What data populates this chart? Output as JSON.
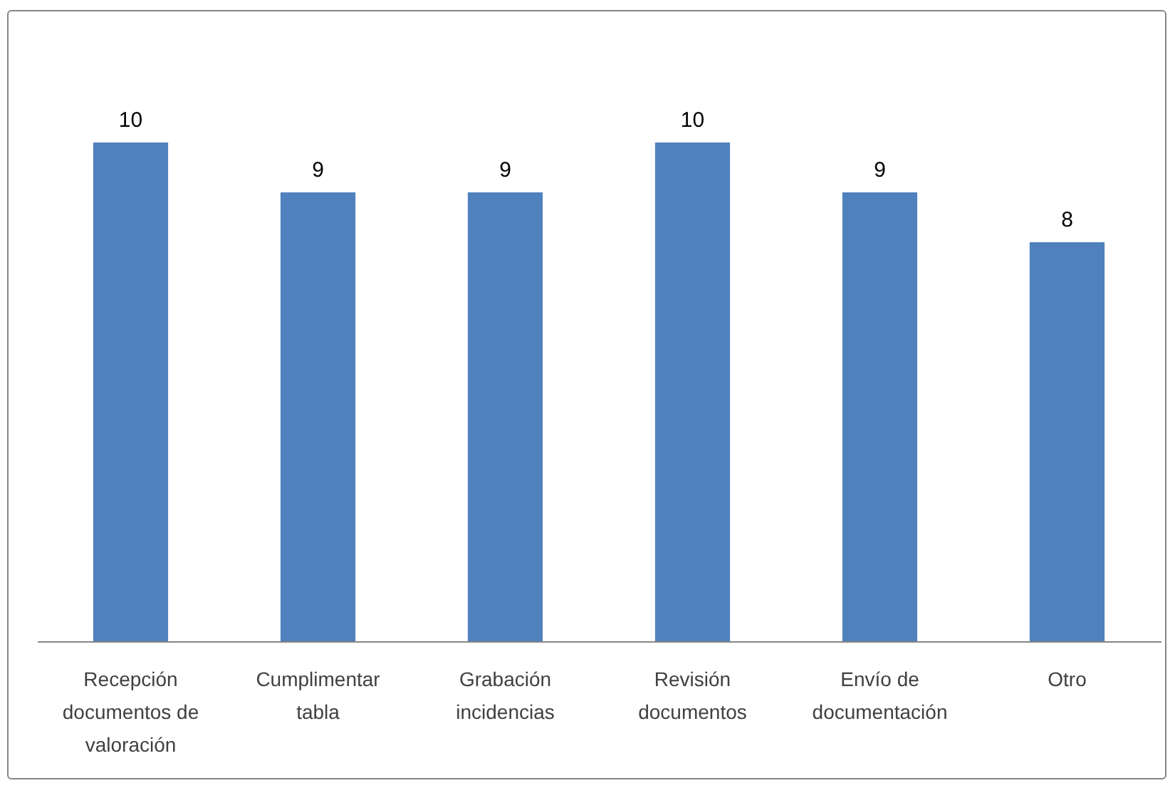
{
  "chart_data": {
    "type": "bar",
    "categories": [
      "Recepción documentos de valoración",
      "Cumplimentar tabla",
      "Grabación incidencias",
      "Revisión documentos",
      "Envío de documentación",
      "Otro"
    ],
    "values": [
      10,
      9,
      9,
      10,
      9,
      8
    ],
    "color": "#4f81bd",
    "data_labels": true
  }
}
